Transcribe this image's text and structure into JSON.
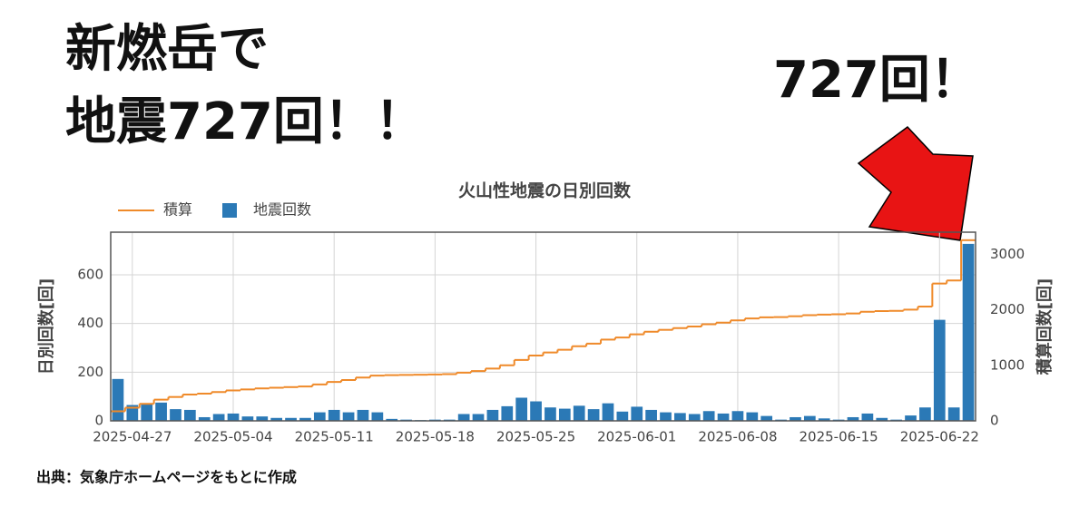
{
  "headline": {
    "lines": [
      "新燃岳で",
      "地震727回！！"
    ],
    "callout": "727回！"
  },
  "source": "出典：気象庁ホームページをもとに作成",
  "chart_data": {
    "type": "bar",
    "title": "火山性地震の日別回数",
    "ylabel": "日別回数[回]",
    "y2label": "積算回数[回]",
    "categories": [
      "2025-04-26",
      "2025-04-27",
      "2025-04-28",
      "2025-04-29",
      "2025-04-30",
      "2025-05-01",
      "2025-05-02",
      "2025-05-03",
      "2025-05-04",
      "2025-05-05",
      "2025-05-06",
      "2025-05-07",
      "2025-05-08",
      "2025-05-09",
      "2025-05-10",
      "2025-05-11",
      "2025-05-12",
      "2025-05-13",
      "2025-05-14",
      "2025-05-15",
      "2025-05-16",
      "2025-05-17",
      "2025-05-18",
      "2025-05-19",
      "2025-05-20",
      "2025-05-21",
      "2025-05-22",
      "2025-05-23",
      "2025-05-24",
      "2025-05-25",
      "2025-05-26",
      "2025-05-27",
      "2025-05-28",
      "2025-05-29",
      "2025-05-30",
      "2025-05-31",
      "2025-06-01",
      "2025-06-02",
      "2025-06-03",
      "2025-06-04",
      "2025-06-05",
      "2025-06-06",
      "2025-06-07",
      "2025-06-08",
      "2025-06-09",
      "2025-06-10",
      "2025-06-11",
      "2025-06-12",
      "2025-06-13",
      "2025-06-14",
      "2025-06-15",
      "2025-06-16",
      "2025-06-17",
      "2025-06-18",
      "2025-06-19",
      "2025-06-20",
      "2025-06-21",
      "2025-06-22",
      "2025-06-23",
      "2025-06-24"
    ],
    "xtick_step": 7,
    "xtick_start": 1,
    "series": [
      {
        "name": "積算",
        "type": "line",
        "axis": "y2",
        "color": "#ef8a2a",
        "values": [
          172,
          237,
          307,
          382,
          430,
          475,
          490,
          518,
          548,
          566,
          584,
          596,
          608,
          620,
          655,
          700,
          735,
          780,
          815,
          823,
          828,
          831,
          836,
          841,
          869,
          897,
          942,
          1002,
          1097,
          1177,
          1232,
          1282,
          1344,
          1392,
          1464,
          1502,
          1560,
          1605,
          1640,
          1672,
          1700,
          1740,
          1770,
          1810,
          1845,
          1865,
          1870,
          1885,
          1905,
          1915,
          1920,
          1935,
          1965,
          1977,
          1982,
          2004,
          2059,
          2474,
          2529,
          3256
        ]
      },
      {
        "name": "地震回数",
        "type": "bar",
        "color": "#2b79b6",
        "values": [
          172,
          65,
          70,
          75,
          48,
          45,
          15,
          28,
          30,
          18,
          18,
          12,
          12,
          12,
          35,
          45,
          35,
          45,
          35,
          8,
          5,
          3,
          5,
          5,
          28,
          28,
          45,
          60,
          95,
          80,
          55,
          50,
          62,
          48,
          72,
          38,
          58,
          45,
          35,
          32,
          28,
          40,
          30,
          40,
          35,
          20,
          5,
          15,
          20,
          10,
          5,
          15,
          30,
          12,
          5,
          22,
          55,
          415,
          55,
          727
        ]
      }
    ],
    "ylim": [
      0,
      775
    ],
    "yticks": [
      0,
      200,
      400,
      600
    ],
    "y2lim": [
      0,
      3400
    ],
    "y2ticks": [
      0,
      1000,
      2000,
      3000
    ],
    "grid": true
  }
}
